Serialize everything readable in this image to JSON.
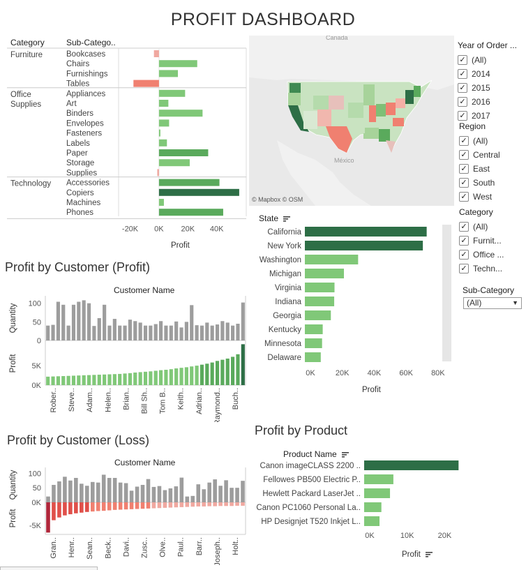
{
  "dashboard": {
    "title": "PROFIT DASHBOARD"
  },
  "colors": {
    "dark_green": "#2d6e46",
    "mid_green": "#5aaa5c",
    "light_green": "#80c878",
    "salmon": "#f08070",
    "pale_red": "#f0a8a0",
    "grey_bar": "#9d9d9d",
    "scroll_track": "#e6e6e6"
  },
  "category_chart": {
    "headers": {
      "category": "Category",
      "subcategory": "Sub-Catego.."
    },
    "axis_title": "Profit",
    "x_ticks": [
      "-20K",
      "0K",
      "20K",
      "40K"
    ],
    "groups": [
      {
        "category": "Furniture",
        "rows": [
          {
            "name": "Bookcases",
            "value": -3500
          },
          {
            "name": "Chairs",
            "value": 26500
          },
          {
            "name": "Furnishings",
            "value": 13100
          },
          {
            "name": "Tables",
            "value": -17700
          }
        ]
      },
      {
        "category": "Office Supplies",
        "rows": [
          {
            "name": "Appliances",
            "value": 18100
          },
          {
            "name": "Art",
            "value": 6500
          },
          {
            "name": "Binders",
            "value": 30200
          },
          {
            "name": "Envelopes",
            "value": 7000
          },
          {
            "name": "Fasteners",
            "value": 950
          },
          {
            "name": "Labels",
            "value": 5500
          },
          {
            "name": "Paper",
            "value": 34100
          },
          {
            "name": "Storage",
            "value": 21300
          },
          {
            "name": "Supplies",
            "value": -1200
          }
        ]
      },
      {
        "category": "Technology",
        "rows": [
          {
            "name": "Accessories",
            "value": 41900
          },
          {
            "name": "Copiers",
            "value": 55600
          },
          {
            "name": "Machines",
            "value": 3400
          },
          {
            "name": "Phones",
            "value": 44500
          }
        ]
      }
    ]
  },
  "map": {
    "labels": {
      "canada": "Canada",
      "mexico": "México"
    },
    "attribution": "© Mapbox  © OSM"
  },
  "state_chart": {
    "header": "State",
    "axis_title": "Profit",
    "x_ticks": [
      "0K",
      "20K",
      "40K",
      "60K",
      "80K"
    ],
    "rows": [
      {
        "name": "California",
        "value": 76400
      },
      {
        "name": "New York",
        "value": 74000
      },
      {
        "name": "Washington",
        "value": 33400
      },
      {
        "name": "Michigan",
        "value": 24500
      },
      {
        "name": "Virginia",
        "value": 18600
      },
      {
        "name": "Indiana",
        "value": 18400
      },
      {
        "name": "Georgia",
        "value": 16300
      },
      {
        "name": "Kentucky",
        "value": 11200
      },
      {
        "name": "Minnesota",
        "value": 10800
      },
      {
        "name": "Delaware",
        "value": 9980
      }
    ]
  },
  "filters": {
    "year": {
      "title": "Year of Order ...",
      "options": [
        "(All)",
        "2014",
        "2015",
        "2016",
        "2017"
      ]
    },
    "region": {
      "title": "Region",
      "options": [
        "(All)",
        "Central",
        "East",
        "South",
        "West"
      ]
    },
    "category": {
      "title": "Category",
      "options": [
        "(All)",
        "Furnit...",
        "Office ...",
        "Techn..."
      ]
    },
    "subcategory": {
      "title": "Sub-Category",
      "selected": "(All)"
    }
  },
  "customer_profit": {
    "title": "Profit by Customer (Profit)",
    "header": "Customer Name",
    "qty_axis_title": "Quantity",
    "profit_axis_title": "Profit",
    "qty_ticks": [
      "100",
      "50",
      "0"
    ],
    "profit_ticks": [
      "5K",
      "0K"
    ],
    "x_labels": [
      "Rober..",
      "Steve..",
      "Adam..",
      "Helen..",
      "Brian..",
      "Bill Sh..",
      "Tom B..",
      "Keith..",
      "Adrian..",
      "Raymond..",
      "Buch.."
    ]
  },
  "customer_loss": {
    "title": "Profit by Customer (Loss)",
    "header": "Customer Name",
    "qty_axis_title": "Quantity",
    "profit_axis_title": "Profit",
    "qty_ticks": [
      "100",
      "50"
    ],
    "profit_ticks": [
      "0K",
      "-5K"
    ],
    "x_labels": [
      "Gran..",
      "Henr..",
      "Sean..",
      "Beck..",
      "Davi..",
      "Zusc..",
      "Olve..",
      "Paul..",
      "Barr..",
      "Joseph..",
      "Holt.."
    ]
  },
  "product_chart": {
    "title": "Profit by Product",
    "header": "Product Name",
    "axis_title": "Profit",
    "x_ticks": [
      "0K",
      "10K",
      "20K"
    ],
    "rows": [
      {
        "name": "Canon imageCLASS 2200 ..",
        "value": 25200
      },
      {
        "name": "Fellowes PB500 Electric P..",
        "value": 7800
      },
      {
        "name": "Hewlett Packard LaserJet ..",
        "value": 6900
      },
      {
        "name": "Canon PC1060 Personal La..",
        "value": 4600
      },
      {
        "name": "HP Designjet T520 Inkjet L..",
        "value": 4100
      }
    ]
  },
  "chart_data": [
    {
      "type": "bar",
      "title": "",
      "xlabel": "Profit",
      "ylabel": "Sub-Category",
      "categories": [
        "Bookcases",
        "Chairs",
        "Furnishings",
        "Tables",
        "Appliances",
        "Art",
        "Binders",
        "Envelopes",
        "Fasteners",
        "Labels",
        "Paper",
        "Storage",
        "Supplies",
        "Accessories",
        "Copiers",
        "Machines",
        "Phones"
      ],
      "values": [
        -3500,
        26500,
        13100,
        -17700,
        18100,
        6500,
        30200,
        7000,
        950,
        5500,
        34100,
        21300,
        -1200,
        41900,
        55600,
        3400,
        44500
      ],
      "xlim": [
        -28000,
        60000
      ],
      "orientation": "horizontal"
    },
    {
      "type": "bar",
      "title": "",
      "xlabel": "Profit",
      "ylabel": "State",
      "categories": [
        "California",
        "New York",
        "Washington",
        "Michigan",
        "Virginia",
        "Indiana",
        "Georgia",
        "Kentucky",
        "Minnesota",
        "Delaware"
      ],
      "values": [
        76400,
        74000,
        33400,
        24500,
        18600,
        18400,
        16300,
        11200,
        10800,
        9980
      ],
      "xlim": [
        0,
        84000
      ],
      "orientation": "horizontal"
    },
    {
      "type": "bar",
      "title": "Profit by Customer (Profit)",
      "xlabel": "Customer Name",
      "series": [
        {
          "name": "Quantity",
          "values": [
            40,
            42,
            104,
            96,
            40,
            96,
            104,
            108,
            100,
            39,
            60,
            96,
            40,
            58,
            40,
            40,
            56,
            52,
            48,
            40,
            40,
            44,
            52,
            40,
            40,
            51,
            35,
            50,
            95,
            41,
            40,
            48,
            40,
            43,
            52,
            48,
            40,
            45,
            102
          ]
        },
        {
          "name": "Profit",
          "values": [
            2150,
            2200,
            2250,
            2300,
            2350,
            2400,
            2450,
            2500,
            2550,
            2600,
            2650,
            2700,
            2750,
            2800,
            2850,
            2950,
            3050,
            3200,
            3300,
            3400,
            3500,
            3650,
            3800,
            3900,
            4050,
            4250,
            4400,
            4550,
            4750,
            4950,
            5200,
            5450,
            5750,
            6150,
            6450,
            6750,
            7200,
            7850,
            10400
          ]
        }
      ],
      "ylim_quantity": [
        0,
        120
      ],
      "ylim_profit": [
        0,
        11000
      ]
    },
    {
      "type": "bar",
      "title": "Profit by Customer (Loss)",
      "xlabel": "Customer Name",
      "series": [
        {
          "name": "Quantity",
          "values": [
            20,
            60,
            72,
            88,
            75,
            84,
            64,
            57,
            70,
            68,
            95,
            84,
            84,
            68,
            66,
            40,
            54,
            60,
            80,
            53,
            56,
            42,
            48,
            55,
            85,
            20,
            22,
            62,
            45,
            68,
            79,
            57,
            76,
            50,
            50,
            74
          ]
        },
        {
          "name": "Profit",
          "values": [
            -6600,
            -3900,
            -3300,
            -2850,
            -2600,
            -2400,
            -2250,
            -2100,
            -2000,
            -1900,
            -1850,
            -1750,
            -1650,
            -1600,
            -1550,
            -1500,
            -1450,
            -1400,
            -1350,
            -1300,
            -1250,
            -1200,
            -1150,
            -1100,
            -1050,
            -1000,
            -950,
            -900,
            -900,
            -850,
            -850,
            -800,
            -800,
            -800,
            -750,
            -750
          ]
        }
      ],
      "ylim_quantity": [
        0,
        120
      ],
      "ylim_profit": [
        -7000,
        0
      ]
    },
    {
      "type": "bar",
      "title": "Profit by Product",
      "xlabel": "Profit",
      "ylabel": "Product Name",
      "categories": [
        "Canon imageCLASS 2200 ..",
        "Fellowes PB500 Electric P..",
        "Hewlett Packard LaserJet ..",
        "Canon PC1060 Personal La..",
        "HP Designjet T520 Inkjet L.."
      ],
      "values": [
        25200,
        7800,
        6900,
        4600,
        4100
      ],
      "xlim": [
        0,
        27000
      ],
      "orientation": "horizontal"
    }
  ]
}
